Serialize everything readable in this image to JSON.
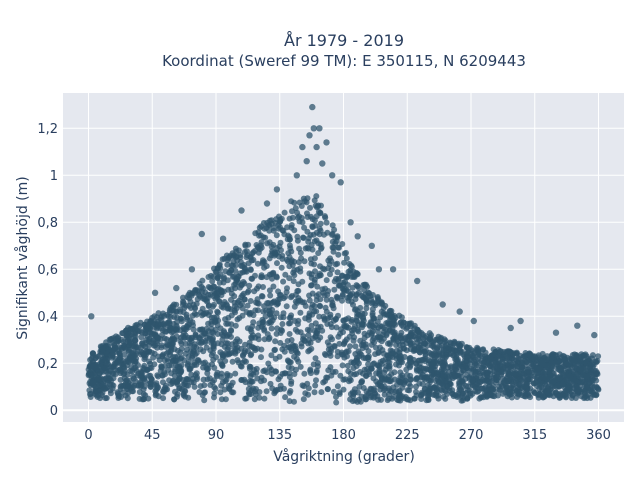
{
  "chart_data": {
    "type": "scatter",
    "title": "År 1979 - 2019",
    "subtitle": "Koordinat (Sweref 99 TM): E 350115, N 6209443",
    "xlabel": "Vågriktning (grader)",
    "ylabel": "Signifikant våghöjd (m)",
    "xlim": [
      -18,
      378
    ],
    "ylim": [
      -0.05,
      1.35
    ],
    "xticks": [
      0,
      45,
      90,
      135,
      180,
      225,
      270,
      315,
      360
    ],
    "xtick_labels": [
      "0",
      "45",
      "90",
      "135",
      "180",
      "225",
      "270",
      "315",
      "360"
    ],
    "yticks": [
      0,
      0.2,
      0.4,
      0.6,
      0.8,
      1.0,
      1.2
    ],
    "ytick_labels": [
      "0",
      "0,2",
      "0,4",
      "0,6",
      "0,8",
      "1",
      "1,2"
    ],
    "grid": true,
    "legend": "none",
    "marker_color": "#2f566d",
    "plot_bg": "#e5e8ef",
    "envelope": {
      "x": [
        0,
        15,
        30,
        45,
        60,
        75,
        90,
        105,
        120,
        135,
        145,
        155,
        160,
        165,
        175,
        185,
        195,
        210,
        225,
        240,
        255,
        270,
        285,
        300,
        315,
        330,
        345,
        360
      ],
      "y_low": [
        0.05,
        0.05,
        0.05,
        0.04,
        0.04,
        0.04,
        0.04,
        0.04,
        0.04,
        0.03,
        0.03,
        0.03,
        0.03,
        0.03,
        0.03,
        0.03,
        0.03,
        0.04,
        0.04,
        0.04,
        0.04,
        0.04,
        0.05,
        0.05,
        0.05,
        0.05,
        0.05,
        0.05
      ],
      "y_high": [
        0.24,
        0.3,
        0.36,
        0.4,
        0.45,
        0.52,
        0.62,
        0.7,
        0.78,
        0.85,
        0.9,
        0.92,
        0.92,
        0.88,
        0.78,
        0.62,
        0.54,
        0.45,
        0.38,
        0.33,
        0.3,
        0.27,
        0.26,
        0.25,
        0.24,
        0.24,
        0.24,
        0.24
      ]
    },
    "outliers": [
      {
        "x": 2,
        "y": 0.4
      },
      {
        "x": 15,
        "y": 0.3
      },
      {
        "x": 28,
        "y": 0.35
      },
      {
        "x": 47,
        "y": 0.5
      },
      {
        "x": 62,
        "y": 0.52
      },
      {
        "x": 73,
        "y": 0.6
      },
      {
        "x": 80,
        "y": 0.75
      },
      {
        "x": 95,
        "y": 0.73
      },
      {
        "x": 108,
        "y": 0.85
      },
      {
        "x": 126,
        "y": 0.88
      },
      {
        "x": 133,
        "y": 0.94
      },
      {
        "x": 147,
        "y": 1.0
      },
      {
        "x": 151,
        "y": 1.12
      },
      {
        "x": 154,
        "y": 1.06
      },
      {
        "x": 156,
        "y": 1.17
      },
      {
        "x": 158,
        "y": 1.29
      },
      {
        "x": 159,
        "y": 1.2
      },
      {
        "x": 161,
        "y": 1.12
      },
      {
        "x": 163,
        "y": 1.2
      },
      {
        "x": 165,
        "y": 1.05
      },
      {
        "x": 168,
        "y": 1.14
      },
      {
        "x": 172,
        "y": 1.0
      },
      {
        "x": 178,
        "y": 0.97
      },
      {
        "x": 185,
        "y": 0.8
      },
      {
        "x": 190,
        "y": 0.74
      },
      {
        "x": 200,
        "y": 0.7
      },
      {
        "x": 205,
        "y": 0.6
      },
      {
        "x": 215,
        "y": 0.6
      },
      {
        "x": 232,
        "y": 0.55
      },
      {
        "x": 250,
        "y": 0.45
      },
      {
        "x": 262,
        "y": 0.42
      },
      {
        "x": 272,
        "y": 0.38
      },
      {
        "x": 298,
        "y": 0.35
      },
      {
        "x": 305,
        "y": 0.38
      },
      {
        "x": 330,
        "y": 0.33
      },
      {
        "x": 345,
        "y": 0.36
      },
      {
        "x": 357,
        "y": 0.32
      }
    ]
  }
}
